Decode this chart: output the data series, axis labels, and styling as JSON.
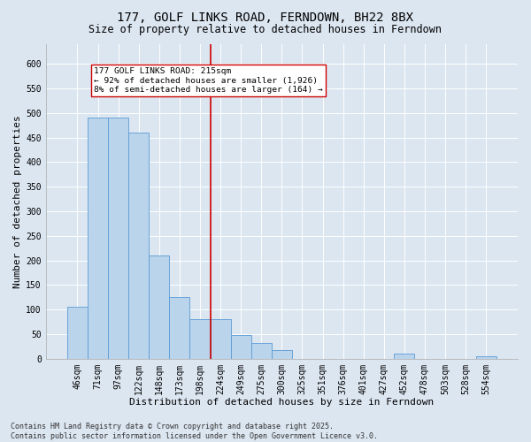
{
  "title1": "177, GOLF LINKS ROAD, FERNDOWN, BH22 8BX",
  "title2": "Size of property relative to detached houses in Ferndown",
  "xlabel": "Distribution of detached houses by size in Ferndown",
  "ylabel": "Number of detached properties",
  "categories": [
    "46sqm",
    "71sqm",
    "97sqm",
    "122sqm",
    "148sqm",
    "173sqm",
    "198sqm",
    "224sqm",
    "249sqm",
    "275sqm",
    "300sqm",
    "325sqm",
    "351sqm",
    "376sqm",
    "401sqm",
    "427sqm",
    "452sqm",
    "478sqm",
    "503sqm",
    "528sqm",
    "554sqm"
  ],
  "values": [
    105,
    490,
    490,
    460,
    210,
    125,
    80,
    80,
    48,
    32,
    18,
    0,
    0,
    0,
    0,
    0,
    10,
    0,
    0,
    0,
    5
  ],
  "bar_color": "#bad4ec",
  "bar_edge_color": "#5b9bd5",
  "vline_color": "#cc0000",
  "vline_pos": 6.5,
  "annotation_text": "177 GOLF LINKS ROAD: 215sqm\n← 92% of detached houses are smaller (1,926)\n8% of semi-detached houses are larger (164) →",
  "annotation_box_color": "#ffffff",
  "annotation_box_edge": "#cc0000",
  "ylim": [
    0,
    640
  ],
  "yticks": [
    0,
    50,
    100,
    150,
    200,
    250,
    300,
    350,
    400,
    450,
    500,
    550,
    600
  ],
  "bg_color": "#dce6f1",
  "plot_bg_color": "#dce6f1",
  "footer_text": "Contains HM Land Registry data © Crown copyright and database right 2025.\nContains public sector information licensed under the Open Government Licence v3.0.",
  "title_fontsize": 10,
  "subtitle_fontsize": 8.5,
  "axis_label_fontsize": 8,
  "tick_fontsize": 7,
  "annotation_fontsize": 6.8,
  "footer_fontsize": 6
}
